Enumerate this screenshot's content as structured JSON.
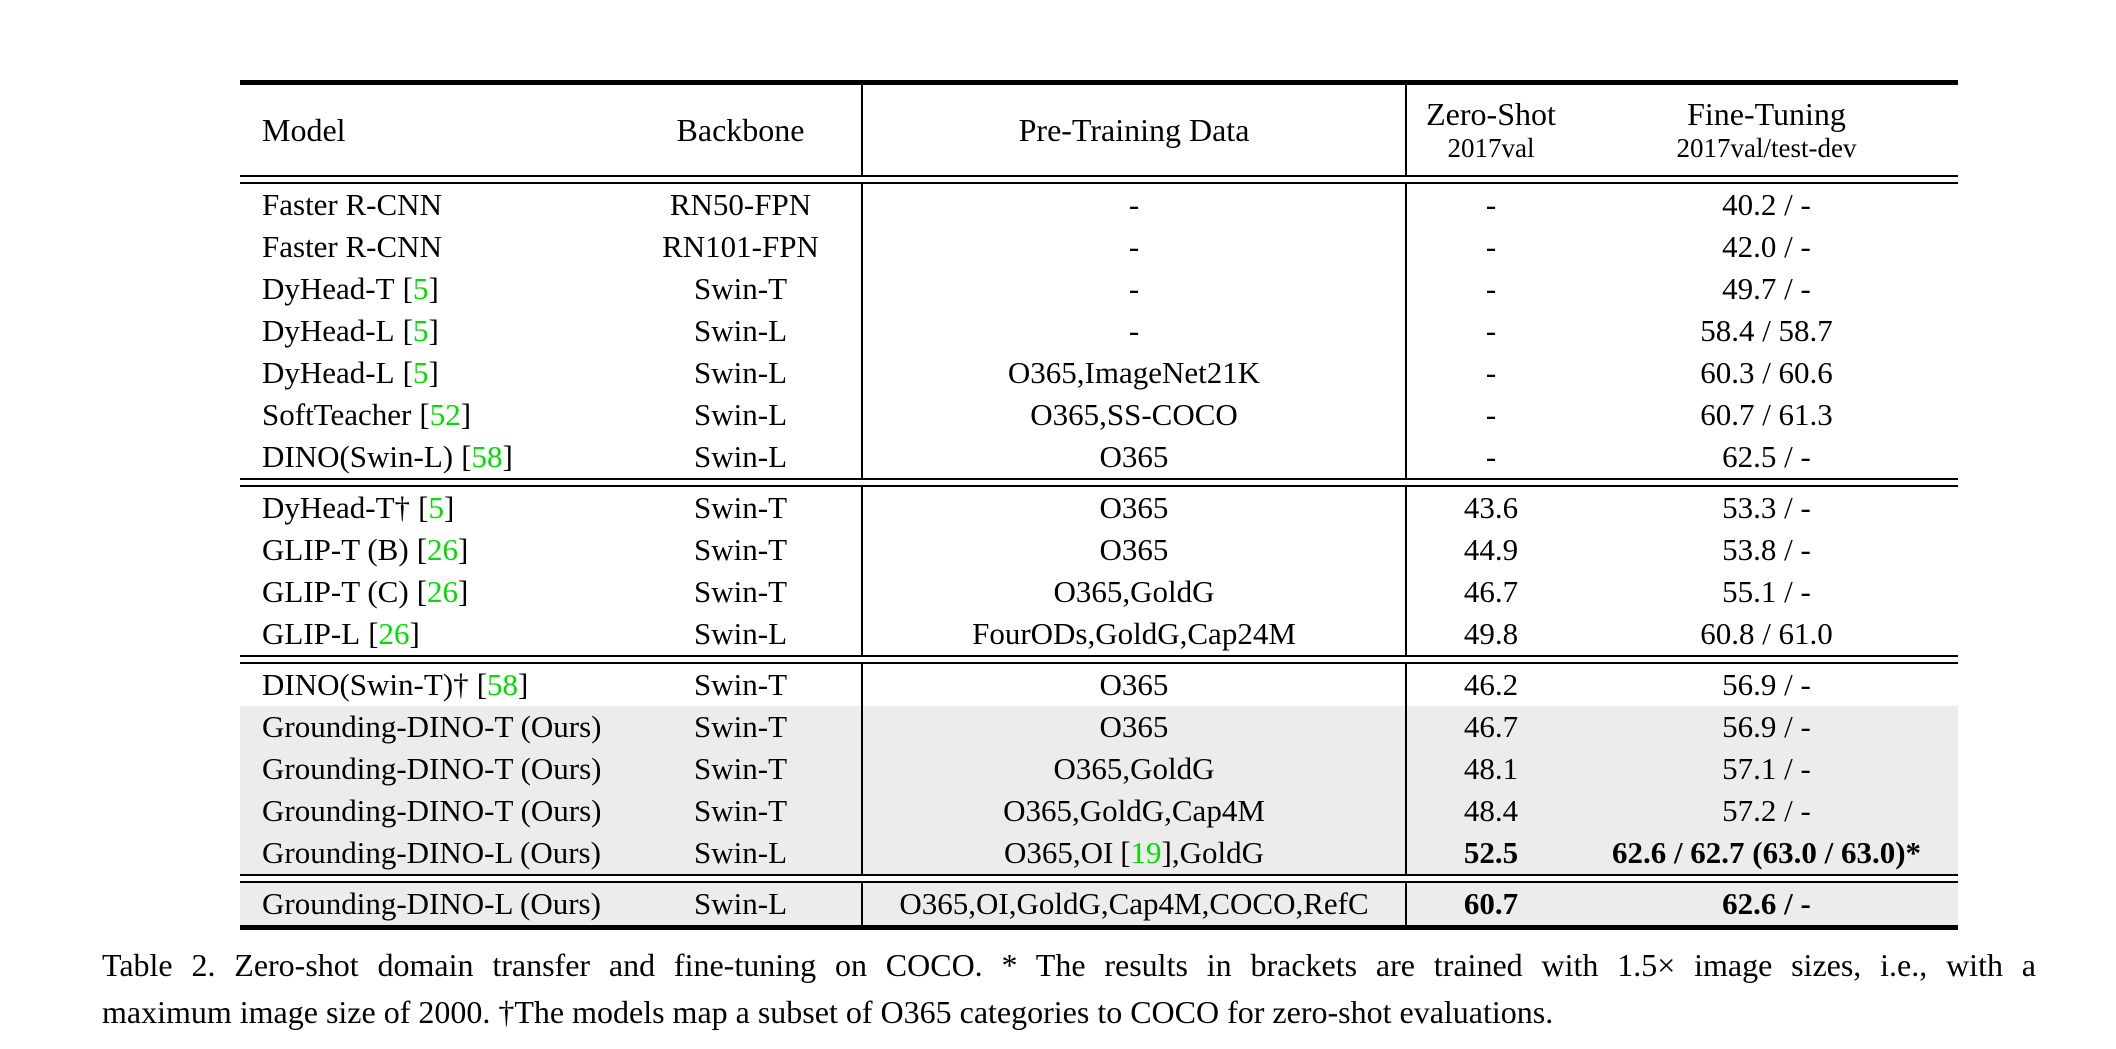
{
  "colors": {
    "citation_green": "#00dd00",
    "highlight_gray": "#ececec"
  },
  "table": {
    "cite_open": "[",
    "cite_close": "]",
    "header": {
      "model": "Model",
      "backbone": "Backbone",
      "pretrain": "Pre-Training Data",
      "zeroshot": "Zero-Shot",
      "zeroshot_sub": "2017val",
      "finetune": "Fine-Tuning",
      "finetune_sub": "2017val/test-dev"
    },
    "groups": [
      {
        "rows": [
          {
            "model": "Faster R-CNN",
            "cite": "",
            "backbone": "RN50-FPN",
            "pretrain": "-",
            "pretrain_cite": "",
            "pretrain_post": "",
            "zeroshot": "-",
            "finetune": "40.2 / -",
            "highlight": false,
            "bold": false
          },
          {
            "model": "Faster R-CNN",
            "cite": "",
            "backbone": "RN101-FPN",
            "pretrain": "-",
            "pretrain_cite": "",
            "pretrain_post": "",
            "zeroshot": "-",
            "finetune": "42.0 / -",
            "highlight": false,
            "bold": false
          },
          {
            "model": "DyHead-T",
            "cite": "5",
            "backbone": "Swin-T",
            "pretrain": "-",
            "pretrain_cite": "",
            "pretrain_post": "",
            "zeroshot": "-",
            "finetune": "49.7 / -",
            "highlight": false,
            "bold": false
          },
          {
            "model": "DyHead-L",
            "cite": "5",
            "backbone": "Swin-L",
            "pretrain": "-",
            "pretrain_cite": "",
            "pretrain_post": "",
            "zeroshot": "-",
            "finetune": "58.4 / 58.7",
            "highlight": false,
            "bold": false
          },
          {
            "model": "DyHead-L",
            "cite": "5",
            "backbone": "Swin-L",
            "pretrain": "O365,ImageNet21K",
            "pretrain_cite": "",
            "pretrain_post": "",
            "zeroshot": "-",
            "finetune": "60.3 / 60.6",
            "highlight": false,
            "bold": false
          },
          {
            "model": "SoftTeacher",
            "cite": "52",
            "backbone": "Swin-L",
            "pretrain": "O365,SS-COCO",
            "pretrain_cite": "",
            "pretrain_post": "",
            "zeroshot": "-",
            "finetune": "60.7 / 61.3",
            "highlight": false,
            "bold": false
          },
          {
            "model": "DINO(Swin-L)",
            "cite": "58",
            "backbone": "Swin-L",
            "pretrain": "O365",
            "pretrain_cite": "",
            "pretrain_post": "",
            "zeroshot": "-",
            "finetune": "62.5 / -",
            "highlight": false,
            "bold": false
          }
        ]
      },
      {
        "rows": [
          {
            "model": "DyHead-T†",
            "cite": "5",
            "backbone": "Swin-T",
            "pretrain": "O365",
            "pretrain_cite": "",
            "pretrain_post": "",
            "zeroshot": "43.6",
            "finetune": "53.3 / -",
            "highlight": false,
            "bold": false
          },
          {
            "model": "GLIP-T (B)",
            "cite": "26",
            "backbone": "Swin-T",
            "pretrain": "O365",
            "pretrain_cite": "",
            "pretrain_post": "",
            "zeroshot": "44.9",
            "finetune": "53.8 / -",
            "highlight": false,
            "bold": false
          },
          {
            "model": "GLIP-T (C)",
            "cite": "26",
            "backbone": "Swin-T",
            "pretrain": "O365,GoldG",
            "pretrain_cite": "",
            "pretrain_post": "",
            "zeroshot": "46.7",
            "finetune": "55.1 / -",
            "highlight": false,
            "bold": false
          },
          {
            "model": "GLIP-L",
            "cite": "26",
            "backbone": "Swin-L",
            "pretrain": "FourODs,GoldG,Cap24M",
            "pretrain_cite": "",
            "pretrain_post": "",
            "zeroshot": "49.8",
            "finetune": "60.8 / 61.0",
            "highlight": false,
            "bold": false
          }
        ]
      },
      {
        "rows": [
          {
            "model": "DINO(Swin-T)†",
            "cite": "58",
            "backbone": "Swin-T",
            "pretrain": "O365",
            "pretrain_cite": "",
            "pretrain_post": "",
            "zeroshot": "46.2",
            "finetune": "56.9 / -",
            "highlight": false,
            "bold": false
          },
          {
            "model": "Grounding-DINO-T (Ours)",
            "cite": "",
            "backbone": "Swin-T",
            "pretrain": "O365",
            "pretrain_cite": "",
            "pretrain_post": "",
            "zeroshot": "46.7",
            "finetune": "56.9 / -",
            "highlight": true,
            "bold": false
          },
          {
            "model": "Grounding-DINO-T (Ours)",
            "cite": "",
            "backbone": "Swin-T",
            "pretrain": "O365,GoldG",
            "pretrain_cite": "",
            "pretrain_post": "",
            "zeroshot": "48.1",
            "finetune": "57.1 / -",
            "highlight": true,
            "bold": false
          },
          {
            "model": "Grounding-DINO-T (Ours)",
            "cite": "",
            "backbone": "Swin-T",
            "pretrain": "O365,GoldG,Cap4M",
            "pretrain_cite": "",
            "pretrain_post": "",
            "zeroshot": "48.4",
            "finetune": "57.2 / -",
            "highlight": true,
            "bold": false
          },
          {
            "model": "Grounding-DINO-L (Ours)",
            "cite": "",
            "backbone": "Swin-L",
            "pretrain": "O365,OI",
            "pretrain_cite": "19",
            "pretrain_post": ",GoldG",
            "zeroshot": "52.5",
            "finetune": "62.6 / 62.7 (63.0 / 63.0)*",
            "highlight": true,
            "bold": true
          }
        ]
      },
      {
        "rows": [
          {
            "model": "Grounding-DINO-L (Ours)",
            "cite": "",
            "backbone": "Swin-L",
            "pretrain": "O365,OI,GoldG,Cap4M,COCO,RefC",
            "pretrain_cite": "",
            "pretrain_post": "",
            "zeroshot": "60.7",
            "finetune": "62.6 / -",
            "highlight": true,
            "bold": true
          }
        ]
      }
    ]
  },
  "caption": {
    "line1": "Table 2. Zero-shot domain transfer and fine-tuning on COCO. * The results in brackets are trained with 1.5× image sizes, i.e., with a",
    "line2": "maximum image size of 2000. †The models map a subset of O365 categories to COCO for zero-shot evaluations."
  }
}
